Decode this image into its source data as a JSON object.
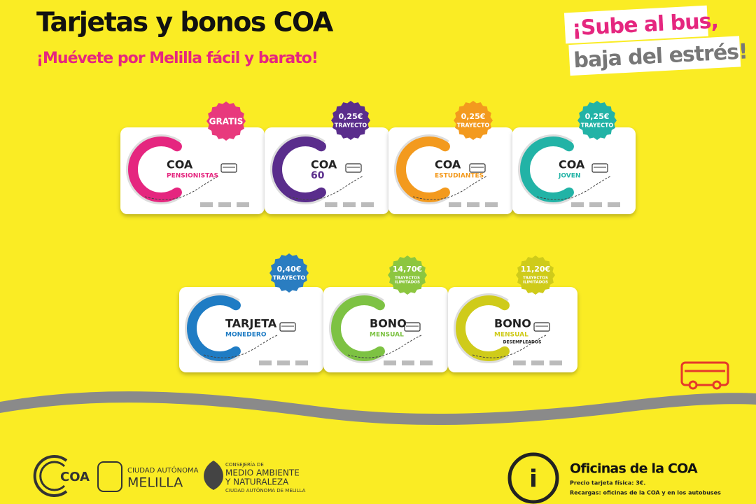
{
  "header": {
    "title": "Tarjetas y bonos COA",
    "subtitle": "¡Muévete por Melilla fácil y barato!"
  },
  "slogan": {
    "line1": "¡Sube al bus,",
    "line2": "baja del estrés!"
  },
  "cards": [
    {
      "badge": [
        "GRATIS"
      ],
      "name": [
        "COA",
        "PENSIONISTAS"
      ],
      "color": "#e5267f",
      "badge_color": "#e8397d"
    },
    {
      "badge": [
        "0,25€",
        "TRAYECTO"
      ],
      "name": [
        "COA",
        "60"
      ],
      "color": "#5a2d8c",
      "badge_color": "#5a2d8c"
    },
    {
      "badge": [
        "0,25€",
        "TRAYECTO"
      ],
      "name": [
        "COA",
        "ESTUDIANTES"
      ],
      "color": "#f39a1e",
      "badge_color": "#f39a1e"
    },
    {
      "badge": [
        "0,25€",
        "TRAYECTO"
      ],
      "name": [
        "COA",
        "JOVEN"
      ],
      "color": "#22b3a6",
      "badge_color": "#22b3a6"
    },
    {
      "badge": [
        "0,40€",
        "TRAYECTO"
      ],
      "name": [
        "TARJETA",
        "MONEDERO"
      ],
      "color": "#1f7cc4",
      "badge_color": "#2a7dc1"
    },
    {
      "badge": [
        "14,70€",
        "TRAYECTOS",
        "ILIMITADOS"
      ],
      "name": [
        "BONO",
        "MENSUAL"
      ],
      "color": "#7dc243",
      "badge_color": "#8cc63f"
    },
    {
      "badge": [
        "11,20€",
        "TRAYECTOS",
        "ILIMITADOS"
      ],
      "name": [
        "BONO",
        "MENSUAL",
        "DESEMPLEADOS"
      ],
      "color": "#cfcb1a",
      "badge_color": "#cfcb1a"
    }
  ],
  "footer": {
    "coa_logo": "COA",
    "melilla": [
      "CIUDAD AUTÓNOMA",
      "MELILLA"
    ],
    "consejeria": [
      "CONSEJERÍA DE",
      "MEDIO AMBIENTE",
      "Y NATURALEZA",
      "CIUDAD AUTÓNOMA DE MELILLA"
    ],
    "info": {
      "icon": "i",
      "title": "Oficinas de la COA",
      "lines": [
        "Precio tarjeta física: 3€.",
        "Recargas: oficinas de la COA y en los autobuses"
      ]
    }
  }
}
